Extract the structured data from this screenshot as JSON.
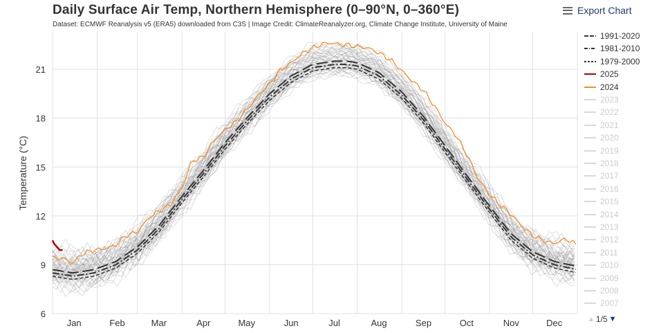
{
  "header": {
    "title": "Daily Surface Air Temp, Northern Hemisphere (0–90°N, 0–360°E)",
    "subtitle": "Dataset: ECMWF Reanalysis v5 (ERA5) downloaded from C3S | Image Credit: ClimateReanalyzer.org, Climate Change Institute, University of Maine",
    "export_label": "Export Chart",
    "export_icon": "menu-icon"
  },
  "chart_data": {
    "type": "line",
    "title": "Daily Surface Air Temp, Northern Hemisphere (0–90°N, 0–360°E)",
    "xlabel": "",
    "ylabel": "Temperature (°C)",
    "ylim": [
      6,
      23.3
    ],
    "yticks": [
      6,
      9,
      12,
      15,
      18,
      21
    ],
    "xlim": [
      1,
      366
    ],
    "xticks": [
      {
        "label": "Jan",
        "day": 16
      },
      {
        "label": "Feb",
        "day": 46
      },
      {
        "label": "Mar",
        "day": 75
      },
      {
        "label": "Apr",
        "day": 106
      },
      {
        "label": "May",
        "day": 136
      },
      {
        "label": "Jun",
        "day": 167
      },
      {
        "label": "Jul",
        "day": 197
      },
      {
        "label": "Aug",
        "day": 228
      },
      {
        "label": "Sep",
        "day": 259
      },
      {
        "label": "Oct",
        "day": 289
      },
      {
        "label": "Nov",
        "day": 320
      },
      {
        "label": "Dec",
        "day": 350
      }
    ],
    "month_starts": [
      1,
      32,
      60,
      91,
      121,
      152,
      182,
      213,
      244,
      274,
      305,
      335
    ],
    "grid": true,
    "legend_position": "right",
    "series": [
      {
        "name": "1991-2020",
        "color": "#333333",
        "dash": "16 6",
        "width": 2,
        "x": [
          1,
          15,
          30,
          45,
          60,
          75,
          91,
          106,
          121,
          136,
          152,
          167,
          182,
          197,
          206,
          213,
          228,
          244,
          259,
          274,
          289,
          305,
          320,
          335,
          350,
          366
        ],
        "y": [
          8.7,
          8.5,
          8.7,
          9.2,
          10.1,
          11.4,
          13.2,
          14.8,
          16.5,
          18.0,
          19.5,
          20.6,
          21.3,
          21.5,
          21.5,
          21.4,
          20.8,
          19.6,
          18.1,
          16.3,
          14.5,
          12.6,
          10.9,
          9.8,
          9.2,
          8.9
        ]
      },
      {
        "name": "1981-2010",
        "color": "#333333",
        "dash": "10 3 2 3",
        "width": 2,
        "x": [
          1,
          15,
          30,
          45,
          60,
          75,
          91,
          106,
          121,
          136,
          152,
          167,
          182,
          197,
          206,
          213,
          228,
          244,
          259,
          274,
          289,
          305,
          320,
          335,
          350,
          366
        ],
        "y": [
          8.5,
          8.3,
          8.5,
          9.0,
          9.9,
          11.2,
          13.0,
          14.6,
          16.3,
          17.8,
          19.3,
          20.4,
          21.1,
          21.3,
          21.3,
          21.2,
          20.6,
          19.4,
          17.9,
          16.1,
          14.3,
          12.4,
          10.7,
          9.6,
          9.0,
          8.7
        ]
      },
      {
        "name": "1979-2000",
        "color": "#333333",
        "dash": "5 3",
        "width": 1.5,
        "x": [
          1,
          15,
          30,
          45,
          60,
          75,
          91,
          106,
          121,
          136,
          152,
          167,
          182,
          197,
          206,
          213,
          228,
          244,
          259,
          274,
          289,
          305,
          320,
          335,
          350,
          366
        ],
        "y": [
          8.3,
          8.1,
          8.3,
          8.8,
          9.7,
          11.0,
          12.8,
          14.4,
          16.1,
          17.6,
          19.1,
          20.2,
          20.9,
          21.1,
          21.1,
          21.0,
          20.4,
          19.2,
          17.7,
          15.9,
          14.1,
          12.2,
          10.5,
          9.4,
          8.8,
          8.5
        ]
      },
      {
        "name": "2025",
        "color": "#b20000",
        "dash": "",
        "width": 2.5,
        "x": [
          1,
          2,
          3,
          4,
          5,
          6,
          7,
          8
        ],
        "y": [
          10.5,
          10.3,
          10.2,
          10.1,
          10.0,
          9.9,
          9.9,
          9.9
        ]
      },
      {
        "name": "2024",
        "color": "#f28e2b",
        "dash": "",
        "width": 1.3,
        "x": [
          1,
          8,
          15,
          22,
          30,
          38,
          45,
          52,
          60,
          68,
          75,
          83,
          91,
          98,
          106,
          113,
          121,
          129,
          136,
          144,
          152,
          159,
          167,
          175,
          182,
          190,
          197,
          203,
          206,
          213,
          221,
          228,
          236,
          244,
          251,
          259,
          267,
          274,
          282,
          289,
          297,
          305,
          312,
          320,
          327,
          335,
          342,
          350,
          358,
          366
        ],
        "y": [
          9.4,
          9.4,
          9.1,
          9.7,
          9.9,
          10.0,
          10.2,
          10.8,
          11.0,
          11.9,
          12.3,
          12.7,
          13.7,
          15.4,
          15.6,
          16.6,
          17.3,
          17.8,
          18.5,
          19.4,
          20.1,
          20.9,
          21.4,
          22.0,
          22.3,
          22.6,
          22.6,
          22.5,
          22.5,
          22.4,
          22.3,
          22.0,
          21.6,
          20.9,
          20.3,
          19.7,
          18.7,
          17.7,
          16.9,
          15.8,
          14.3,
          13.3,
          12.7,
          12.1,
          11.4,
          10.8,
          10.5,
          10.3,
          10.6,
          10.2
        ]
      }
    ],
    "legend": [
      {
        "name": "1991-2020",
        "color": "#333333",
        "dash": "6 2",
        "visible": true
      },
      {
        "name": "1981-2010",
        "color": "#333333",
        "dash": "5 2 1 2",
        "visible": true
      },
      {
        "name": "1979-2000",
        "color": "#333333",
        "dash": "3 2",
        "visible": true
      },
      {
        "name": "2025",
        "color": "#b20000",
        "dash": "",
        "visible": true
      },
      {
        "name": "2024",
        "color": "#f28e2b",
        "dash": "",
        "visible": true
      },
      {
        "name": "2023",
        "color": "#cccccc",
        "dash": "",
        "visible": false
      },
      {
        "name": "2022",
        "color": "#cccccc",
        "dash": "",
        "visible": false
      },
      {
        "name": "2021",
        "color": "#cccccc",
        "dash": "",
        "visible": false
      },
      {
        "name": "2020",
        "color": "#cccccc",
        "dash": "",
        "visible": false
      },
      {
        "name": "2019",
        "color": "#cccccc",
        "dash": "",
        "visible": false
      },
      {
        "name": "2018",
        "color": "#cccccc",
        "dash": "",
        "visible": false
      },
      {
        "name": "2017",
        "color": "#cccccc",
        "dash": "",
        "visible": false
      },
      {
        "name": "2016",
        "color": "#cccccc",
        "dash": "",
        "visible": false
      },
      {
        "name": "2015",
        "color": "#cccccc",
        "dash": "",
        "visible": false
      },
      {
        "name": "2014",
        "color": "#cccccc",
        "dash": "",
        "visible": false
      },
      {
        "name": "2013",
        "color": "#cccccc",
        "dash": "",
        "visible": false
      },
      {
        "name": "2012",
        "color": "#cccccc",
        "dash": "",
        "visible": false
      },
      {
        "name": "2011",
        "color": "#cccccc",
        "dash": "",
        "visible": false
      },
      {
        "name": "2010",
        "color": "#cccccc",
        "dash": "",
        "visible": false
      },
      {
        "name": "2009",
        "color": "#cccccc",
        "dash": "",
        "visible": false
      },
      {
        "name": "2008",
        "color": "#cccccc",
        "dash": "",
        "visible": false
      },
      {
        "name": "2007",
        "color": "#cccccc",
        "dash": "",
        "visible": false
      }
    ],
    "background_years": {
      "color": "#999999",
      "description_count": 44,
      "baseline": "1979-2000",
      "year_offsets_c": [
        -0.35,
        -0.2,
        -0.3,
        -0.1,
        -0.25,
        -0.05,
        -0.15,
        0.0,
        0.05,
        -0.1,
        0.1,
        0.05,
        0.15,
        0.1,
        0.2,
        0.2,
        0.25,
        0.3,
        0.35,
        0.3,
        0.45,
        0.4,
        0.5,
        0.55,
        0.5,
        0.6,
        0.65,
        0.6,
        0.75,
        0.8,
        0.7,
        0.85,
        0.9,
        0.95,
        0.9,
        1.05,
        1.1,
        1.0,
        1.15,
        1.2,
        1.25,
        1.1,
        1.3,
        1.5
      ]
    }
  },
  "legend_nav": {
    "page": "1/5",
    "up_icon": "arrow-up-icon",
    "down_icon": "arrow-down-icon"
  }
}
